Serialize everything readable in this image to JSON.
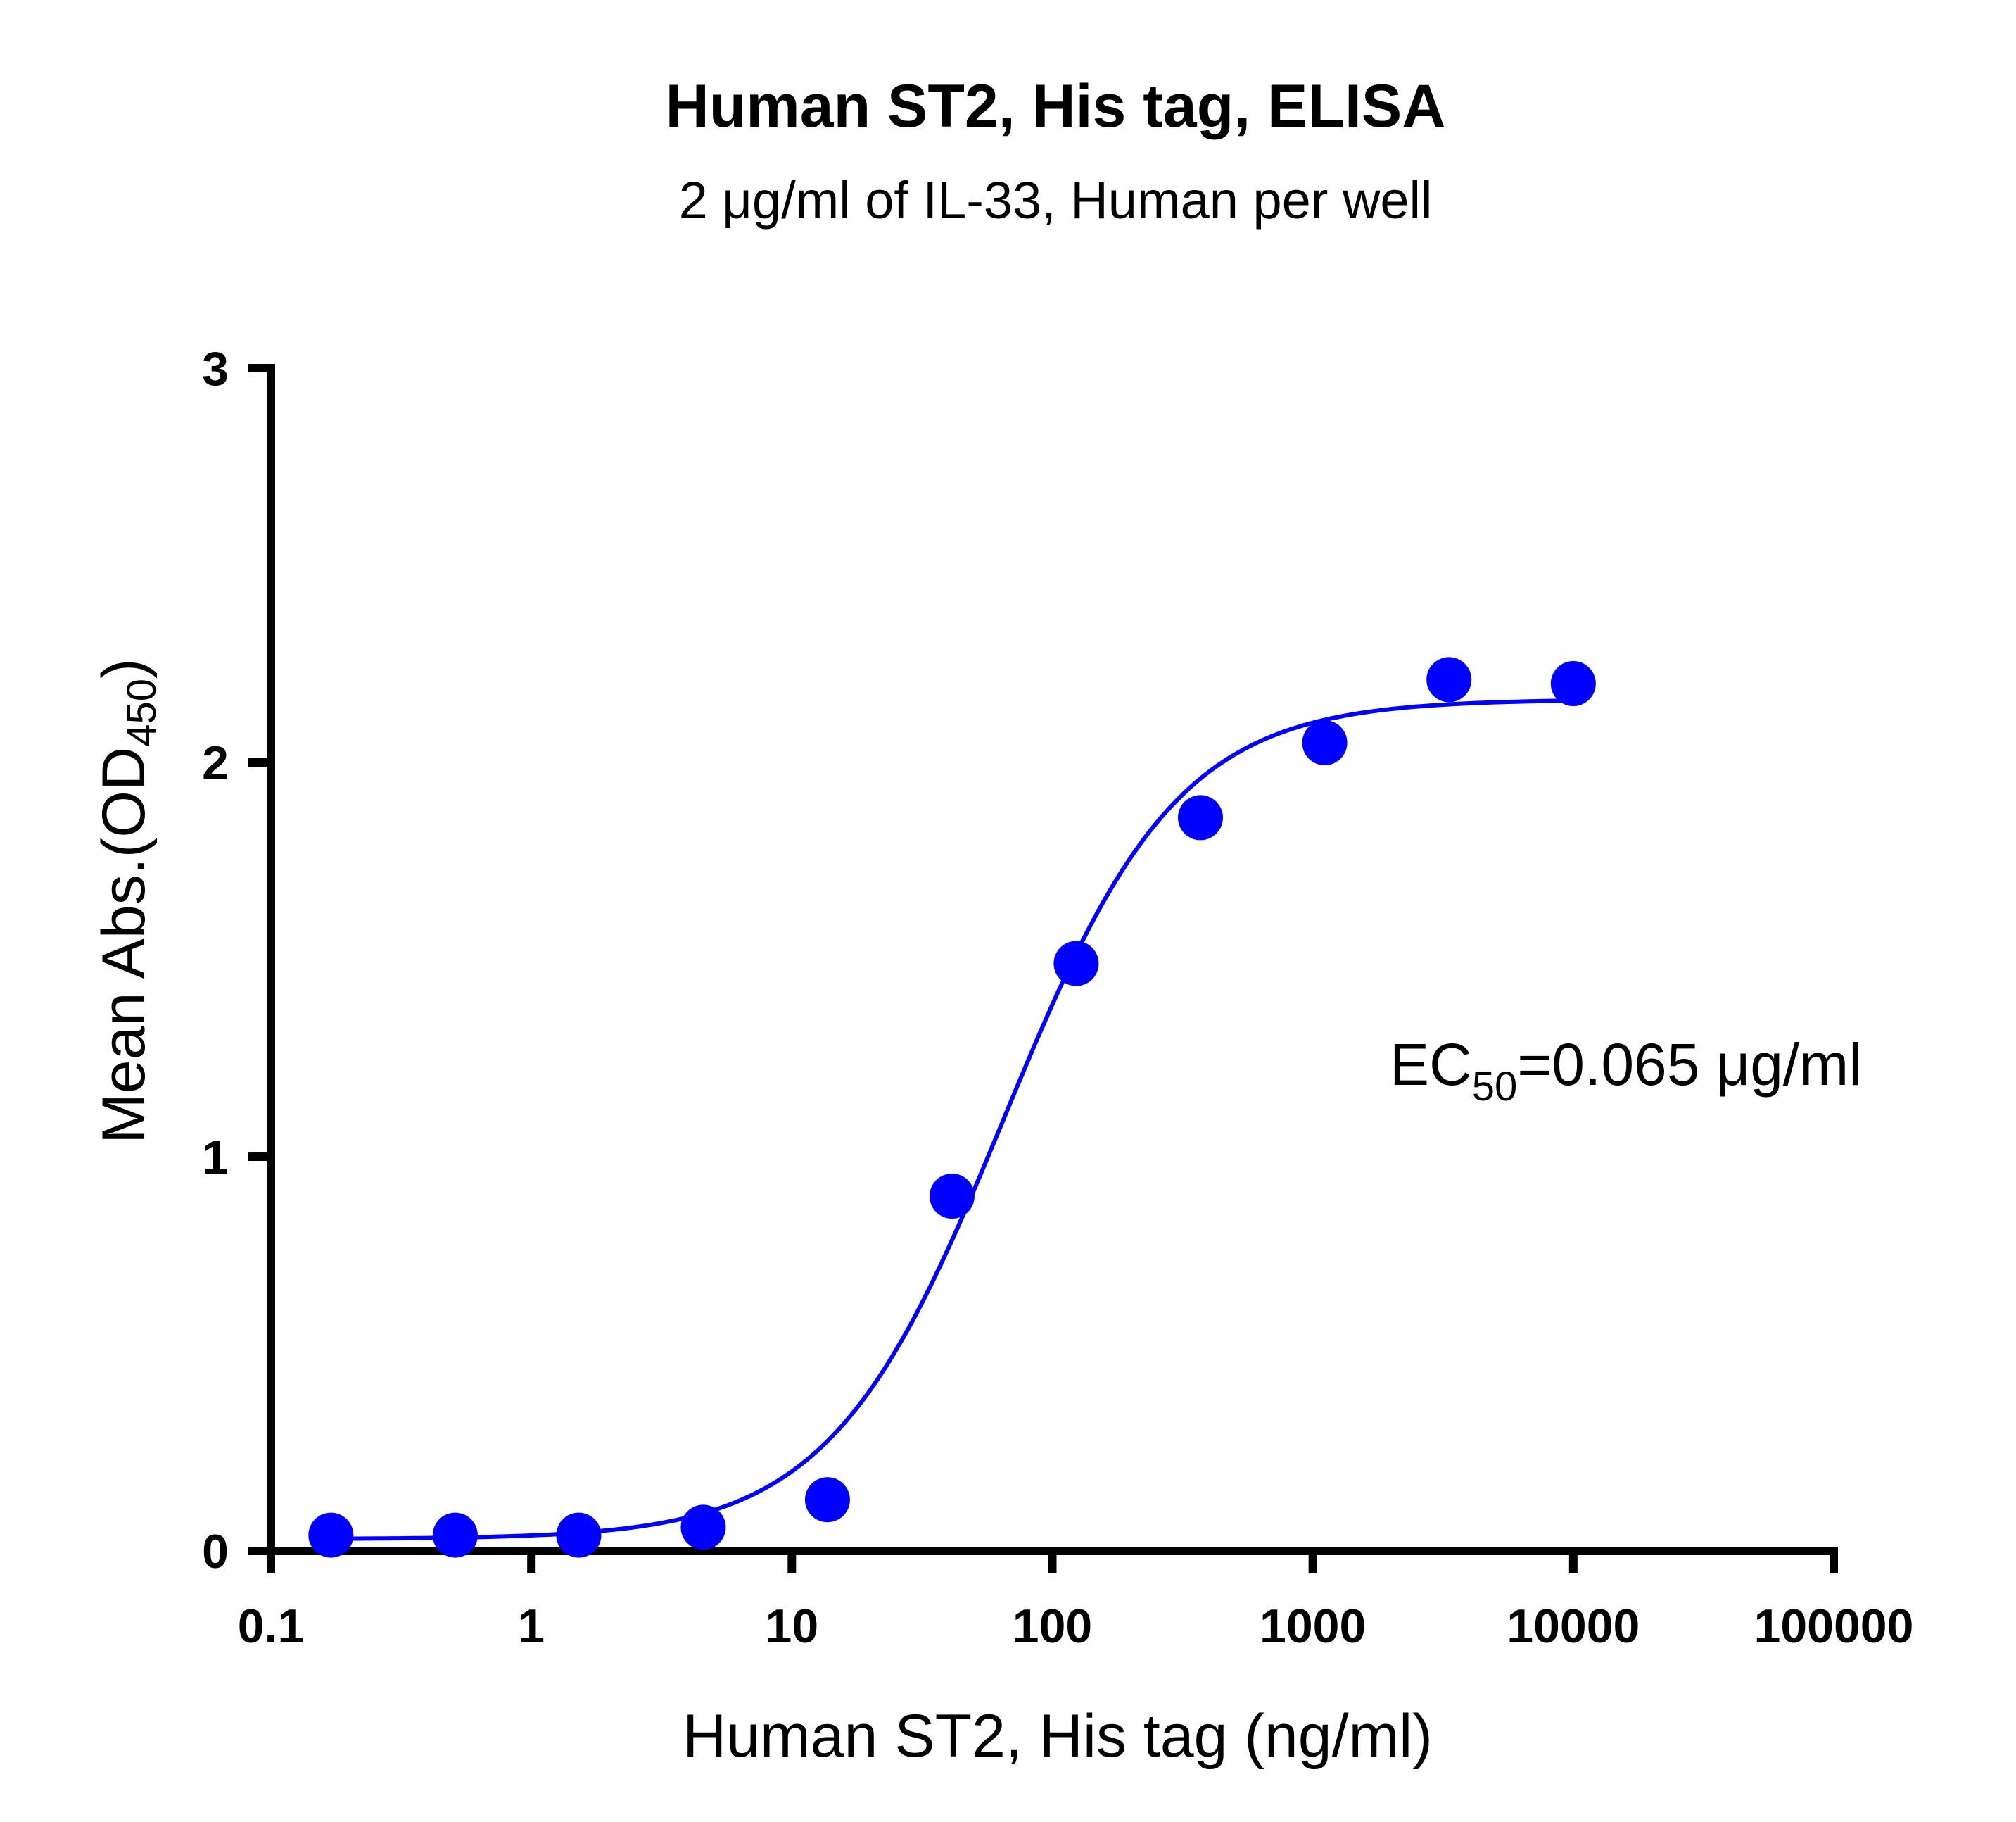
{
  "chart_data": {
    "type": "scatter",
    "title": "Human ST2, His tag, ELISA",
    "subtitle": "2 μg/ml of IL-33, Human per well",
    "xlabel": "Human ST2, His tag (ng/ml)",
    "ylabel_main": "Mean Abs.(OD",
    "ylabel_sub": "450",
    "ylabel_close": ")",
    "x_scale": "log",
    "xlim": [
      0.1,
      100000
    ],
    "ylim": [
      0,
      3
    ],
    "x_ticks": [
      "0.1",
      "1",
      "10",
      "100",
      "1000",
      "10000",
      "100000"
    ],
    "y_ticks": [
      "0",
      "1",
      "2",
      "3"
    ],
    "grid": false,
    "color": "#0000ff",
    "series": [
      {
        "x": [
          0.17,
          0.51,
          1.52,
          4.57,
          13.7,
          41.2,
          123.5,
          370.4,
          1111,
          3333,
          10000
        ],
        "y": [
          0.04,
          0.04,
          0.04,
          0.06,
          0.13,
          0.9,
          1.49,
          1.86,
          2.05,
          2.21,
          2.2
        ]
      }
    ],
    "fit": {
      "model": "4PL",
      "bottom": 0.03,
      "top": 2.16,
      "ec50": 65,
      "hill": 1.3
    },
    "annotation": {
      "prefix": "EC",
      "sub": "50",
      "suffix": "=0.065 μg/ml"
    }
  }
}
